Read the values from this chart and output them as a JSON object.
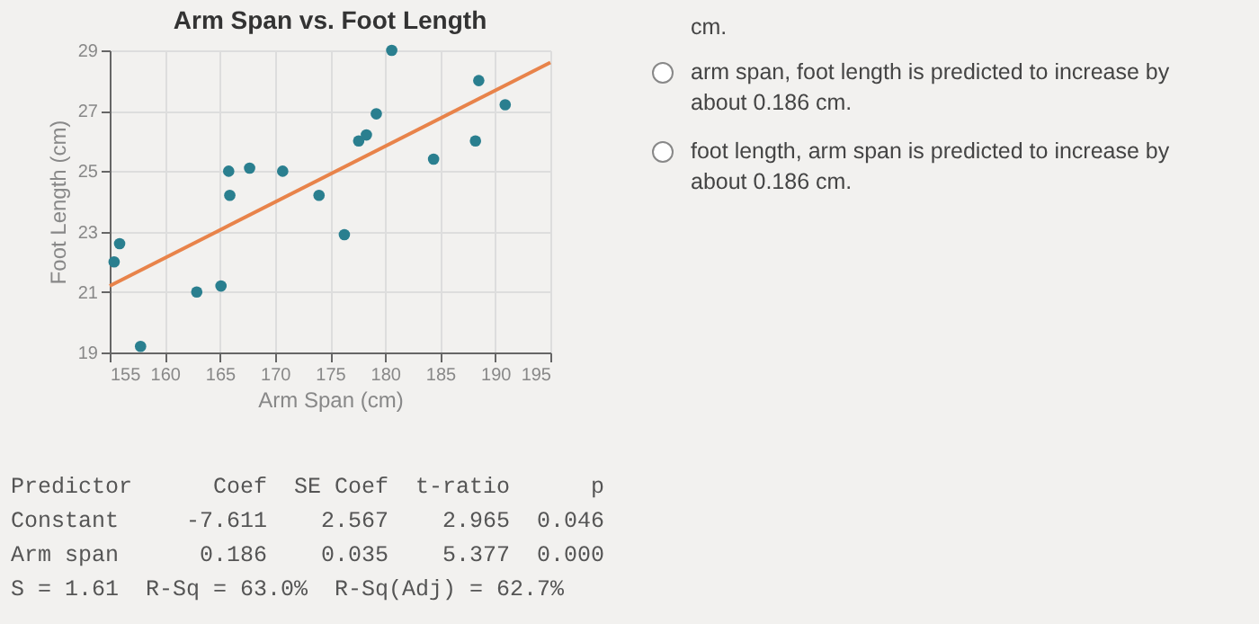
{
  "chart_data": {
    "type": "scatter",
    "title": "Arm Span vs. Foot Length",
    "xlabel": "Arm Span (cm)",
    "ylabel": "Foot Length (cm)",
    "x": [
      155.4,
      155.9,
      157.8,
      162.9,
      165.1,
      165.8,
      165.9,
      167.7,
      170.7,
      174.0,
      176.3,
      177.6,
      178.3,
      179.2,
      180.6,
      184.4,
      188.2,
      188.5,
      190.9
    ],
    "series": [
      {
        "type": "scatter",
        "color": "#2a7f8f",
        "values": [
          22.0,
          22.6,
          19.2,
          21.0,
          21.2,
          25.0,
          24.2,
          25.1,
          25.0,
          24.2,
          22.9,
          26.0,
          26.2,
          26.9,
          29.0,
          25.4,
          26.0,
          28.0,
          27.2
        ]
      },
      {
        "type": "line",
        "color": "#e8834a",
        "marker": "none",
        "x": [
          155,
          195
        ],
        "values": [
          21.2,
          28.6
        ]
      }
    ],
    "xlim": [
      155,
      195
    ],
    "xticks": [
      155,
      160,
      165,
      170,
      175,
      180,
      185,
      190,
      195
    ],
    "ylim": [
      19,
      29
    ],
    "yticks": [
      19,
      21,
      23,
      25,
      27,
      29
    ],
    "grid": true,
    "marker": "circle",
    "annotations": [
      "cm.",
      "arm span, foot length is predicted to increase by about 0.186 cm.",
      "foot length, arm span is predicted to increase by about 0.186 cm.",
      "Predictor      Coef  SE Coef  t-ratio      p",
      "Constant     -7.611    2.567    2.965  0.046",
      "Arm span      0.186    0.035    5.377  0.000",
      "S = 1.61  R-Sq = 63.0%  R-Sq(Adj) = 62.7%"
    ]
  }
}
